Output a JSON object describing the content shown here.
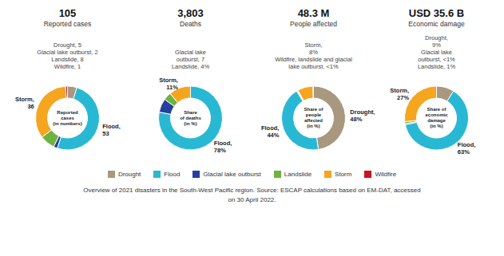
{
  "chart_data": [
    {
      "type": "pie",
      "title": "105",
      "subtitle": "Reported cases",
      "categories": [
        "Drought",
        "Flood",
        "Glacial lake outburst",
        "Landslide",
        "Storm",
        "Wildfire"
      ],
      "values": [
        5,
        53,
        2,
        8,
        36,
        1
      ],
      "value_labels": [
        "Drought, 5",
        "Flood,\n53",
        "Glacial lake outburst, 2",
        "Landslide, 8",
        "Storm,\n36",
        "Wildfire, 1"
      ],
      "colors": [
        "#a89880",
        "#29b8d4",
        "#253fa0",
        "#6db33f",
        "#f5a51e",
        "#cc1122"
      ],
      "annotations": [
        "Reported\ncases\n(in numbers)"
      ]
    },
    {
      "type": "pie",
      "title": "3,803",
      "subtitle": "Deaths",
      "categories": [
        "Flood",
        "Glacial lake outburst",
        "Landslide",
        "Storm"
      ],
      "values": [
        78,
        7,
        4,
        11
      ],
      "value_labels": [
        "Flood,\n78%",
        "Glacial lake\noutburst, 7",
        "Landslide, 4%",
        "Storm,\n11%"
      ],
      "colors": [
        "#29b8d4",
        "#253fa0",
        "#6db33f",
        "#f5a51e"
      ],
      "annotations": [
        "Share\nof deaths\n(in %)"
      ]
    },
    {
      "type": "pie",
      "title": "48.3 M",
      "subtitle": "People affected",
      "categories": [
        "Drought",
        "Flood",
        "Glacial lake outburst",
        "Landslide",
        "Storm",
        "Wildfire"
      ],
      "values": [
        48,
        44,
        0.4,
        0.4,
        8,
        0.2
      ],
      "value_labels": [
        "Drought,\n48%",
        "Flood,\n44%",
        null,
        null,
        "Storm,\n8%",
        null
      ],
      "colors": [
        "#a89880",
        "#29b8d4",
        "#253fa0",
        "#6db33f",
        "#f5a51e",
        "#cc1122"
      ],
      "annotations": [
        "Share of\npeople\naffected\n(in %)",
        "Wildfire, landslide and glacial",
        "lake outburst, <1%"
      ]
    },
    {
      "type": "pie",
      "title": "USD 35.6 B",
      "subtitle": "Economic damage",
      "categories": [
        "Drought",
        "Flood",
        "Glacial lake outburst",
        "Landslide",
        "Storm"
      ],
      "values": [
        9,
        63,
        0.5,
        1,
        27
      ],
      "value_labels": [
        "Drought,\n9%",
        "Flood,\n63%",
        "Glacial lake\noutburst, <1%",
        "Landslide, 1%",
        "Storm,\n27%"
      ],
      "colors": [
        "#a89880",
        "#29b8d4",
        "#253fa0",
        "#6db33f",
        "#f5a51e"
      ],
      "annotations": [
        "Share of\neconomic\ndamage\n(in %)"
      ]
    }
  ],
  "legend": "bottom",
  "annotations": [
    "Overview of 2021 disasters in the South-West Pacific region. Source: ESCAP calculations based on EM-DAT, accessed\non 30 April 2022."
  ]
}
